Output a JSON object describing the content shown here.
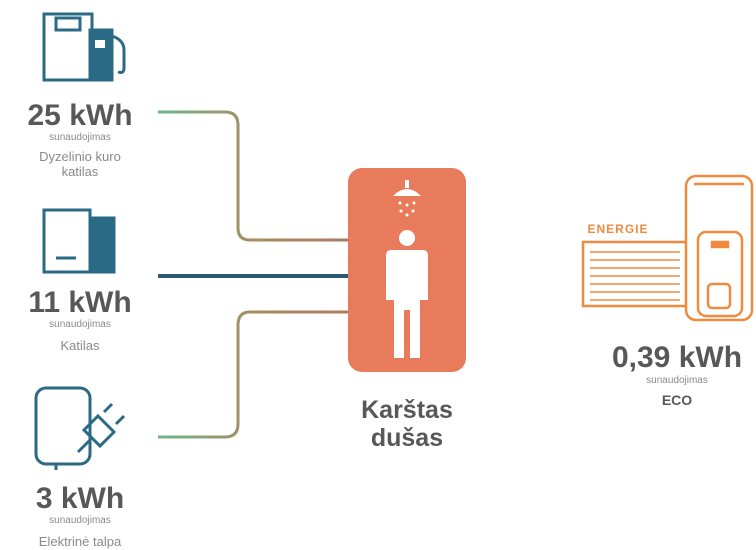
{
  "sources": [
    {
      "value": "25 kWh",
      "sub": "sunaudojimas",
      "label": [
        "Dyzelinio kuro",
        "katilas"
      ]
    },
    {
      "value": "11 kWh",
      "sub": "sunaudojimas",
      "label": [
        "Katilas"
      ]
    },
    {
      "value": "3 kWh",
      "sub": "sunaudojimas",
      "label": [
        "Elektrinė talpa"
      ]
    }
  ],
  "center": {
    "label": [
      "Karštas",
      "dušas"
    ]
  },
  "target": {
    "logo": "ENERGIE",
    "value": "0,39 kWh",
    "sub": "sunaudojimas",
    "label": "ECO"
  }
}
